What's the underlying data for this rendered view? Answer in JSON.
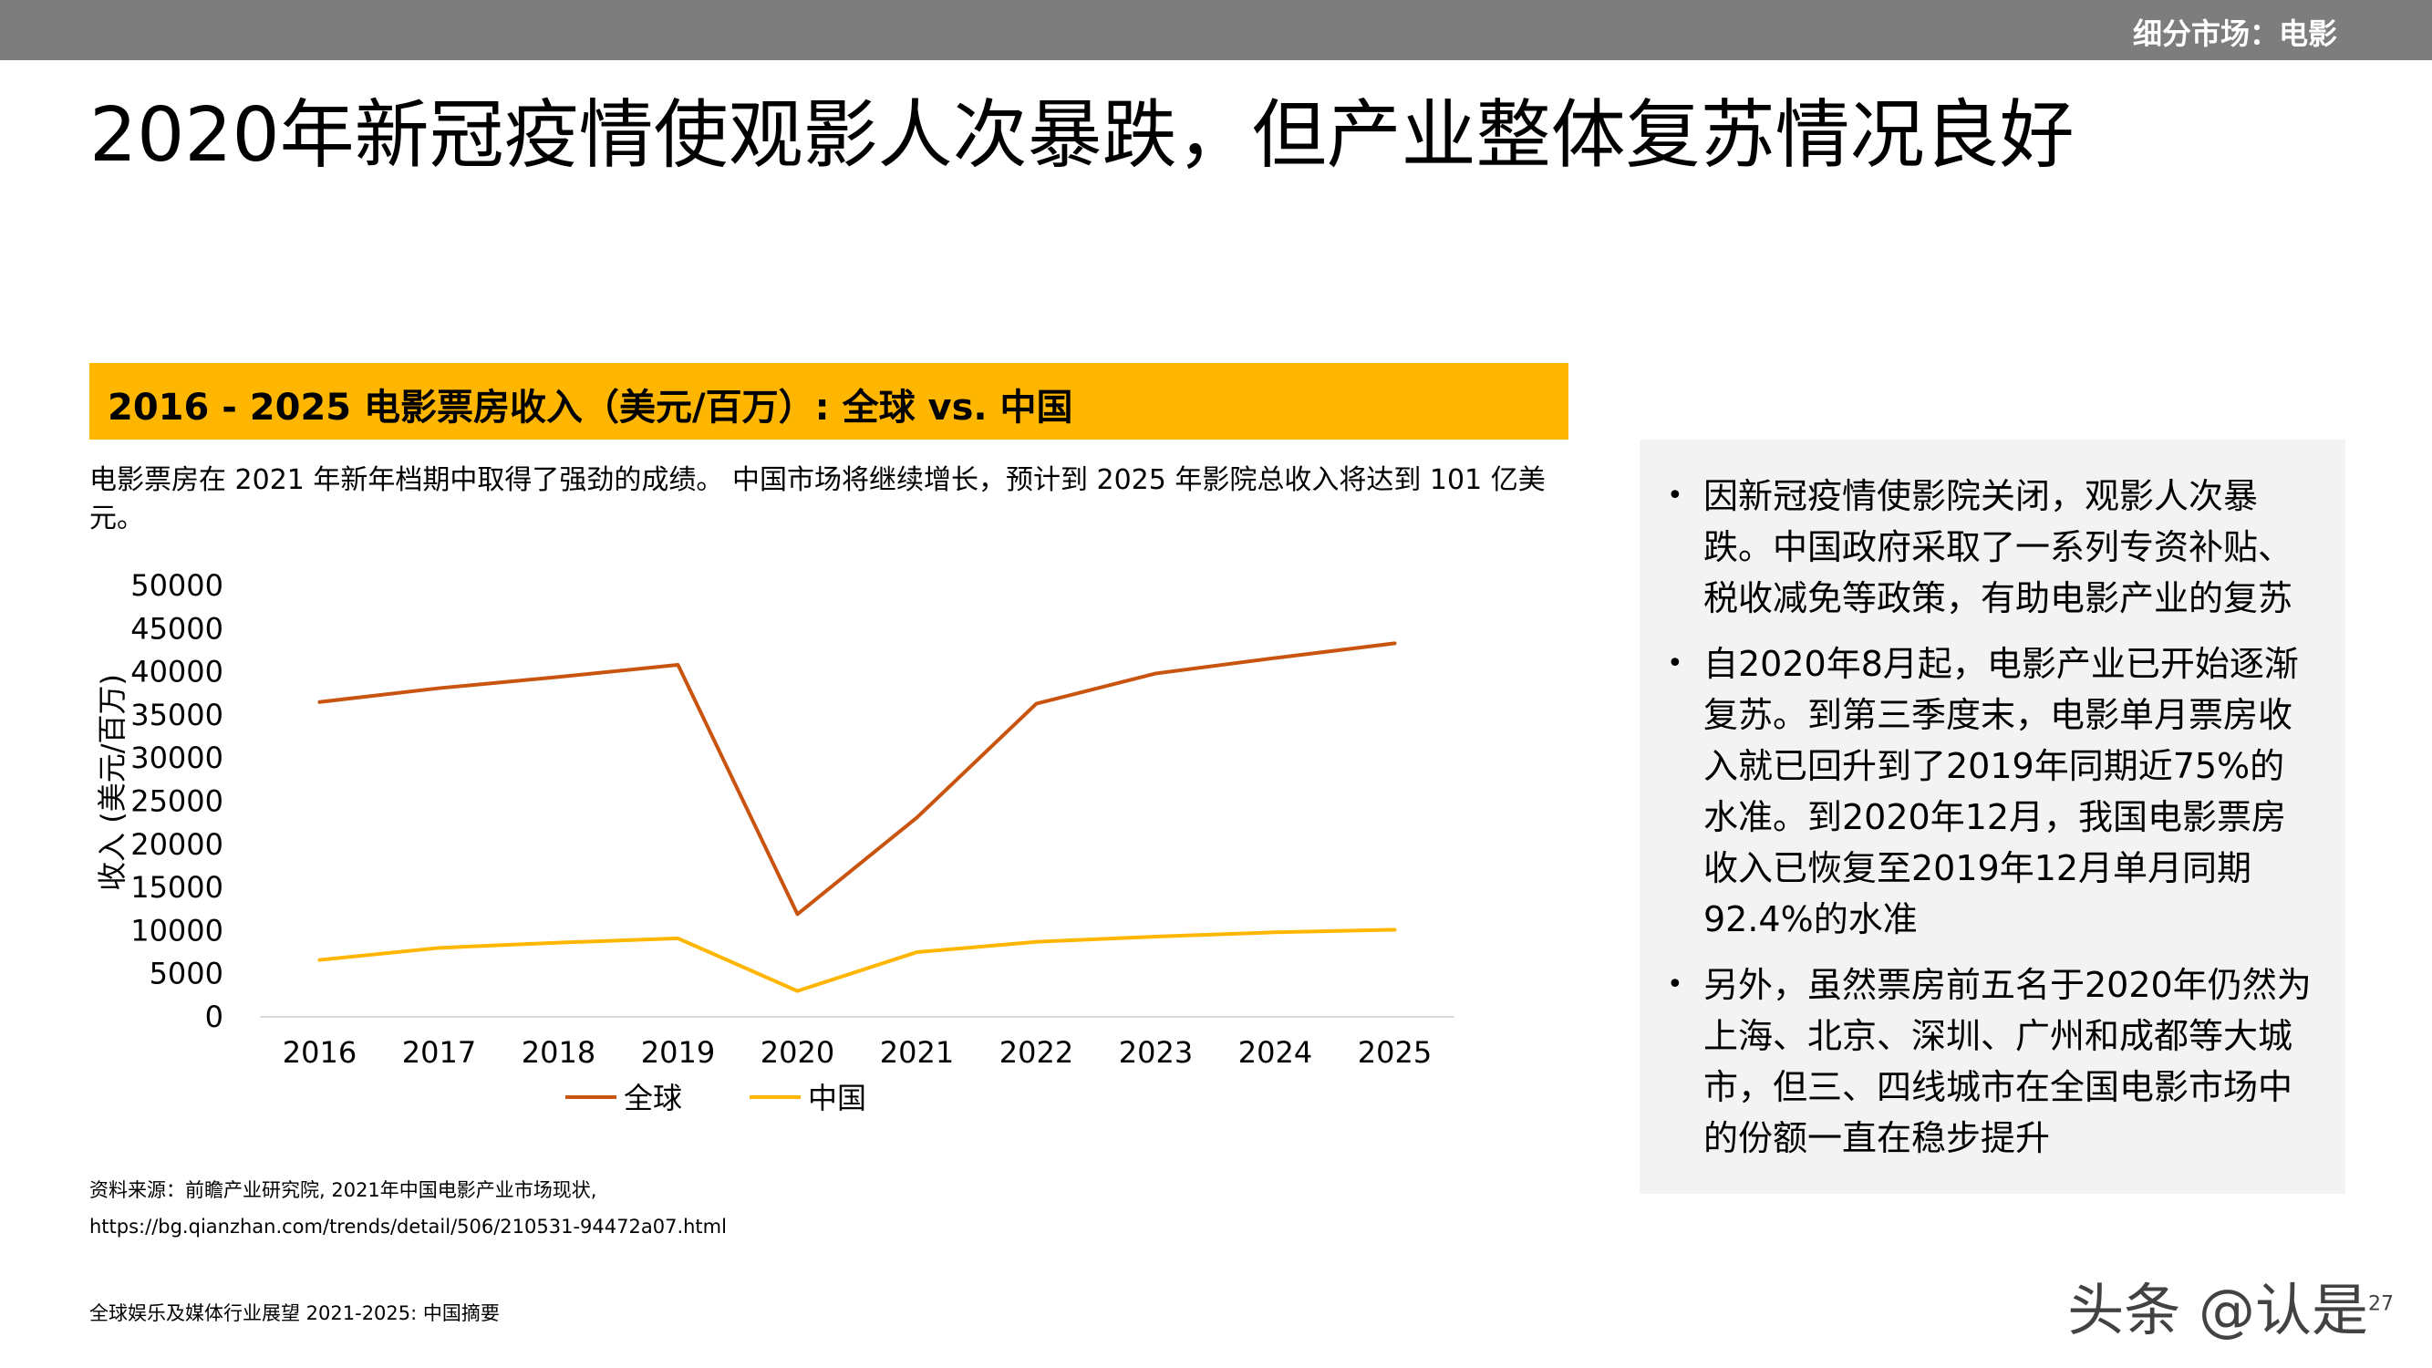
{
  "header": {
    "section_label": "细分市场：电影"
  },
  "title": "2020年新冠疫情使观影人次暴跌，但产业整体复苏情况良好",
  "chart_title": "2016 - 2025 电影票房收入（美元/百万）: 全球 vs. 中国",
  "chart_description": "电影票房在 2021 年新年档期中取得了强劲的成绩。 中国市场将继续增长，预计到 2025 年影院总收入将达到 101 亿美元。",
  "chart_data": {
    "type": "line",
    "x": [
      "2016",
      "2017",
      "2018",
      "2019",
      "2020",
      "2021",
      "2022",
      "2023",
      "2024",
      "2025"
    ],
    "series": [
      {
        "name": "全球",
        "values": [
          36500,
          38100,
          39400,
          40800,
          11900,
          23100,
          36300,
          39800,
          41600,
          43300
        ],
        "color": "#c9540f"
      },
      {
        "name": "中国",
        "values": [
          6600,
          8000,
          8600,
          9100,
          3000,
          7500,
          8700,
          9300,
          9800,
          10100
        ],
        "color": "#ffb600"
      }
    ],
    "ylabel": "收入 (美元/百万)",
    "ylim": [
      0,
      50000
    ],
    "yticks": [
      "0",
      "5000",
      "10000",
      "15000",
      "20000",
      "25000",
      "30000",
      "35000",
      "40000",
      "45000",
      "50000"
    ],
    "grid": false,
    "legend": "bottom"
  },
  "sidebar": {
    "bullets": [
      "因新冠疫情使影院关闭，观影人次暴跌。中国政府采取了一系列专资补贴、税收减免等政策，有助电影产业的复苏",
      "自2020年8月起，电影产业已开始逐渐复苏。到第三季度末，电影单月票房收入就已回升到了2019年同期近75%的水准。到2020年12月，我国电影票房收入已恢复至2019年12月单月同期92.4%的水准",
      "另外，虽然票房前五名于2020年仍然为上海、北京、深圳、广州和成都等大城市，但三、四线城市在全国电影市场中的份额一直在稳步提升"
    ]
  },
  "source_line1": "资料来源：前瞻产业研究院, 2021年中国电影产业市场现状,",
  "source_line2": "https://bg.qianzhan.com/trends/detail/506/210531-94472a07.html",
  "footer": "全球娱乐及媒体行业展望 2021-2025: 中国摘要",
  "watermark": "头条 @认是",
  "page_number": "27"
}
